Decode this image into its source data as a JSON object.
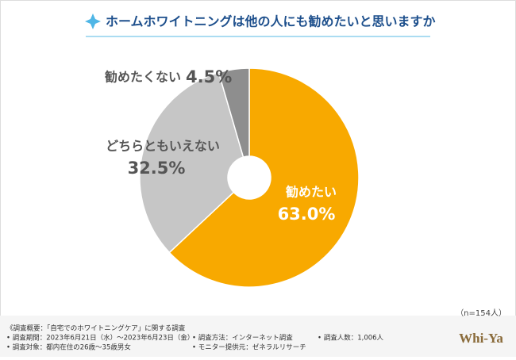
{
  "chart_data": {
    "type": "pie",
    "title": "ホームホワイトニングは他の人にも勧めたいと思いますか",
    "categories": [
      "勧めたい",
      "どちらともいえない",
      "勧めたくない"
    ],
    "values": [
      63.0,
      32.5,
      4.5
    ],
    "value_labels": [
      "63.0%",
      "32.5%",
      "4.5%"
    ],
    "colors": [
      "#f8a900",
      "#c6c6c6",
      "#8e8e8e"
    ],
    "note": "（n=154人）"
  },
  "footer": {
    "heading": "《調査概要：「自宅でのホワイトニングケア」に関する調査",
    "items": [
      "• 調査期間：2023年6月21日（水）～2023年6月23日（金）",
      "• 調査方法：インターネット調査",
      "• 調査人数：1,006人",
      "• 調査対象：都内在住の26歳～35歳男女",
      "• モニター提供元：ゼネラルリサーチ"
    ],
    "logo": "Whi-Ya"
  }
}
